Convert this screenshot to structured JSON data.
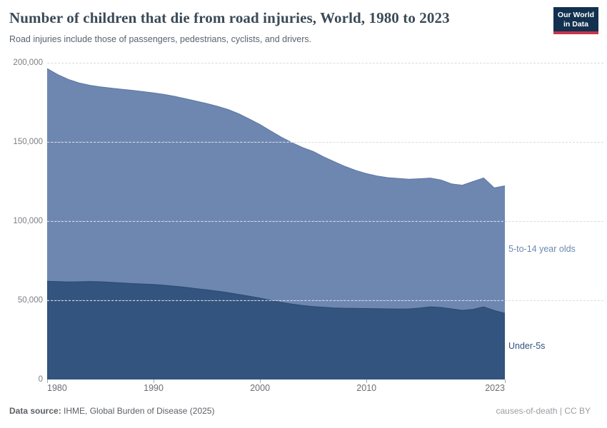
{
  "header": {
    "title": "Number of children that die from road injuries, World, 1980 to 2023",
    "subtitle": "Road injuries include those of passengers, pedestrians, cyclists, and drivers.",
    "logo": {
      "line1": "Our World",
      "line2": "in Data"
    }
  },
  "chart_data": {
    "type": "area",
    "stacked": true,
    "title": "Number of children that die from road injuries, World, 1980 to 2023",
    "xlabel": "",
    "ylabel": "",
    "xlim": [
      1980,
      2023
    ],
    "ylim": [
      0,
      200000
    ],
    "grid": "horizontal-dashed",
    "legend_position": "right-inline",
    "x": [
      1980,
      1981,
      1982,
      1983,
      1984,
      1985,
      1986,
      1987,
      1988,
      1989,
      1990,
      1991,
      1992,
      1993,
      1994,
      1995,
      1996,
      1997,
      1998,
      1999,
      2000,
      2001,
      2002,
      2003,
      2004,
      2005,
      2006,
      2007,
      2008,
      2009,
      2010,
      2011,
      2012,
      2013,
      2014,
      2015,
      2016,
      2017,
      2018,
      2019,
      2020,
      2021,
      2022,
      2023
    ],
    "series": [
      {
        "name": "Under-5s",
        "color": "#32547e",
        "stroke": "#2a4a72",
        "values": [
          62000,
          61800,
          61600,
          61700,
          61900,
          61700,
          61400,
          61000,
          60600,
          60300,
          60000,
          59500,
          58900,
          58200,
          57400,
          56600,
          55800,
          54800,
          53700,
          52600,
          51400,
          50000,
          48700,
          47600,
          46700,
          46100,
          45600,
          45200,
          45000,
          44900,
          44800,
          44700,
          44600,
          44500,
          44600,
          45100,
          45900,
          45500,
          44600,
          43700,
          44300,
          45900,
          43600,
          41800
        ]
      },
      {
        "name": "5-to-14 year olds",
        "color": "#6d87b1",
        "stroke": "#5d78a5",
        "values": [
          134400,
          130700,
          127900,
          125600,
          123900,
          123100,
          122600,
          122300,
          122000,
          121500,
          121000,
          120500,
          119900,
          119100,
          118400,
          117700,
          116700,
          115700,
          114100,
          111900,
          109600,
          107000,
          104300,
          101900,
          99800,
          97900,
          94900,
          92300,
          89500,
          87100,
          85200,
          83800,
          82900,
          82500,
          81900,
          81700,
          81300,
          80500,
          78900,
          79000,
          80700,
          81400,
          77400,
          80500
        ]
      }
    ],
    "y_ticks": [
      {
        "value": 0,
        "label": "0"
      },
      {
        "value": 50000,
        "label": "50,000"
      },
      {
        "value": 100000,
        "label": "100,000"
      },
      {
        "value": 150000,
        "label": "150,000"
      },
      {
        "value": 200000,
        "label": "200,000"
      }
    ],
    "x_ticks": [
      {
        "value": 1980,
        "label": "1980"
      },
      {
        "value": 1990,
        "label": "1990"
      },
      {
        "value": 2000,
        "label": "2000"
      },
      {
        "value": 2010,
        "label": "2010"
      },
      {
        "value": 2023,
        "label": "2023"
      }
    ]
  },
  "footer": {
    "source_label": "Data source:",
    "source_value": " IHME, Global Burden of Disease (2025)",
    "right_text": "causes-of-death | CC BY"
  }
}
